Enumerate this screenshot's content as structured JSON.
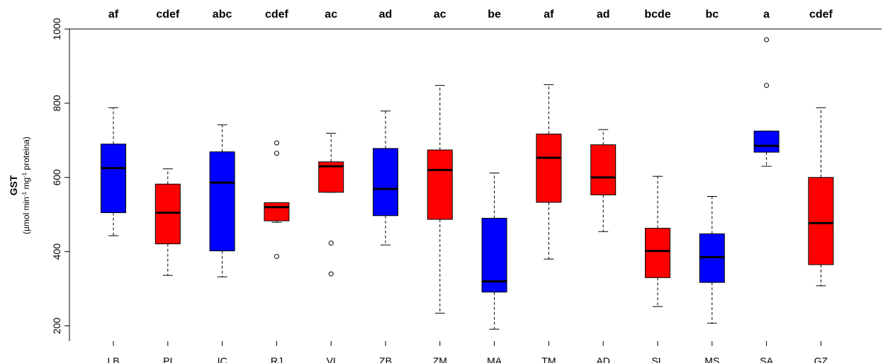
{
  "chart_data": {
    "type": "boxplot",
    "ylabel": "GST",
    "ylabel_unit_parts": [
      "(µmol min",
      "-1",
      " mg",
      "-1",
      " proteina)"
    ],
    "ylim": [
      160,
      1000
    ],
    "yticks": [
      200,
      400,
      600,
      800,
      1000
    ],
    "colors": {
      "blue": "#0000ff",
      "red": "#ff0000"
    },
    "boxes": [
      {
        "category": "LB",
        "label": "af",
        "color": "#0000ff",
        "whisker_low": 443,
        "q1": 505,
        "median": 625,
        "q3": 690,
        "whisker_high": 788,
        "outliers": []
      },
      {
        "category": "PI",
        "label": "cdef",
        "color": "#ff0000",
        "whisker_low": 336,
        "q1": 421,
        "median": 505,
        "q3": 582,
        "whisker_high": 623,
        "outliers": []
      },
      {
        "category": "IC",
        "label": "abc",
        "color": "#0000ff",
        "whisker_low": 332,
        "q1": 402,
        "median": 586,
        "q3": 669,
        "whisker_high": 742,
        "outliers": []
      },
      {
        "category": "RJ",
        "label": "cdef",
        "color": "#ff0000",
        "whisker_low": 479,
        "q1": 483,
        "median": 520,
        "q3": 532,
        "whisker_high": 532,
        "outliers": [
          665,
          693,
          387
        ]
      },
      {
        "category": "VI",
        "label": "ac",
        "color": "#ff0000",
        "whisker_low": 560,
        "q1": 560,
        "median": 630,
        "q3": 642,
        "whisker_high": 719,
        "outliers": [
          423,
          340
        ]
      },
      {
        "category": "ZB",
        "label": "ad",
        "color": "#0000ff",
        "whisker_low": 418,
        "q1": 497,
        "median": 569,
        "q3": 678,
        "whisker_high": 779,
        "outliers": []
      },
      {
        "category": "ZM",
        "label": "ac",
        "color": "#ff0000",
        "whisker_low": 234,
        "q1": 487,
        "median": 620,
        "q3": 674,
        "whisker_high": 848,
        "outliers": []
      },
      {
        "category": "MA",
        "label": "be",
        "color": "#0000ff",
        "whisker_low": 191,
        "q1": 291,
        "median": 320,
        "q3": 490,
        "whisker_high": 612,
        "outliers": []
      },
      {
        "category": "TM",
        "label": "af",
        "color": "#ff0000",
        "whisker_low": 380,
        "q1": 533,
        "median": 653,
        "q3": 717,
        "whisker_high": 850,
        "outliers": []
      },
      {
        "category": "AD",
        "label": "ad",
        "color": "#ff0000",
        "whisker_low": 454,
        "q1": 553,
        "median": 600,
        "q3": 688,
        "whisker_high": 729,
        "outliers": []
      },
      {
        "category": "SL",
        "label": "bcde",
        "color": "#ff0000",
        "whisker_low": 252,
        "q1": 330,
        "median": 402,
        "q3": 463,
        "whisker_high": 603,
        "outliers": []
      },
      {
        "category": "MS",
        "label": "bc",
        "color": "#0000ff",
        "whisker_low": 207,
        "q1": 317,
        "median": 385,
        "q3": 448,
        "whisker_high": 549,
        "outliers": []
      },
      {
        "category": "SA",
        "label": "a",
        "color": "#0000ff",
        "whisker_low": 630,
        "q1": 668,
        "median": 685,
        "q3": 725,
        "whisker_high": 725,
        "outliers": [
          971,
          848
        ]
      },
      {
        "category": "GZ",
        "label": "cdef",
        "color": "#ff0000",
        "whisker_low": 308,
        "q1": 365,
        "median": 477,
        "q3": 600,
        "whisker_high": 788,
        "outliers": []
      }
    ]
  }
}
